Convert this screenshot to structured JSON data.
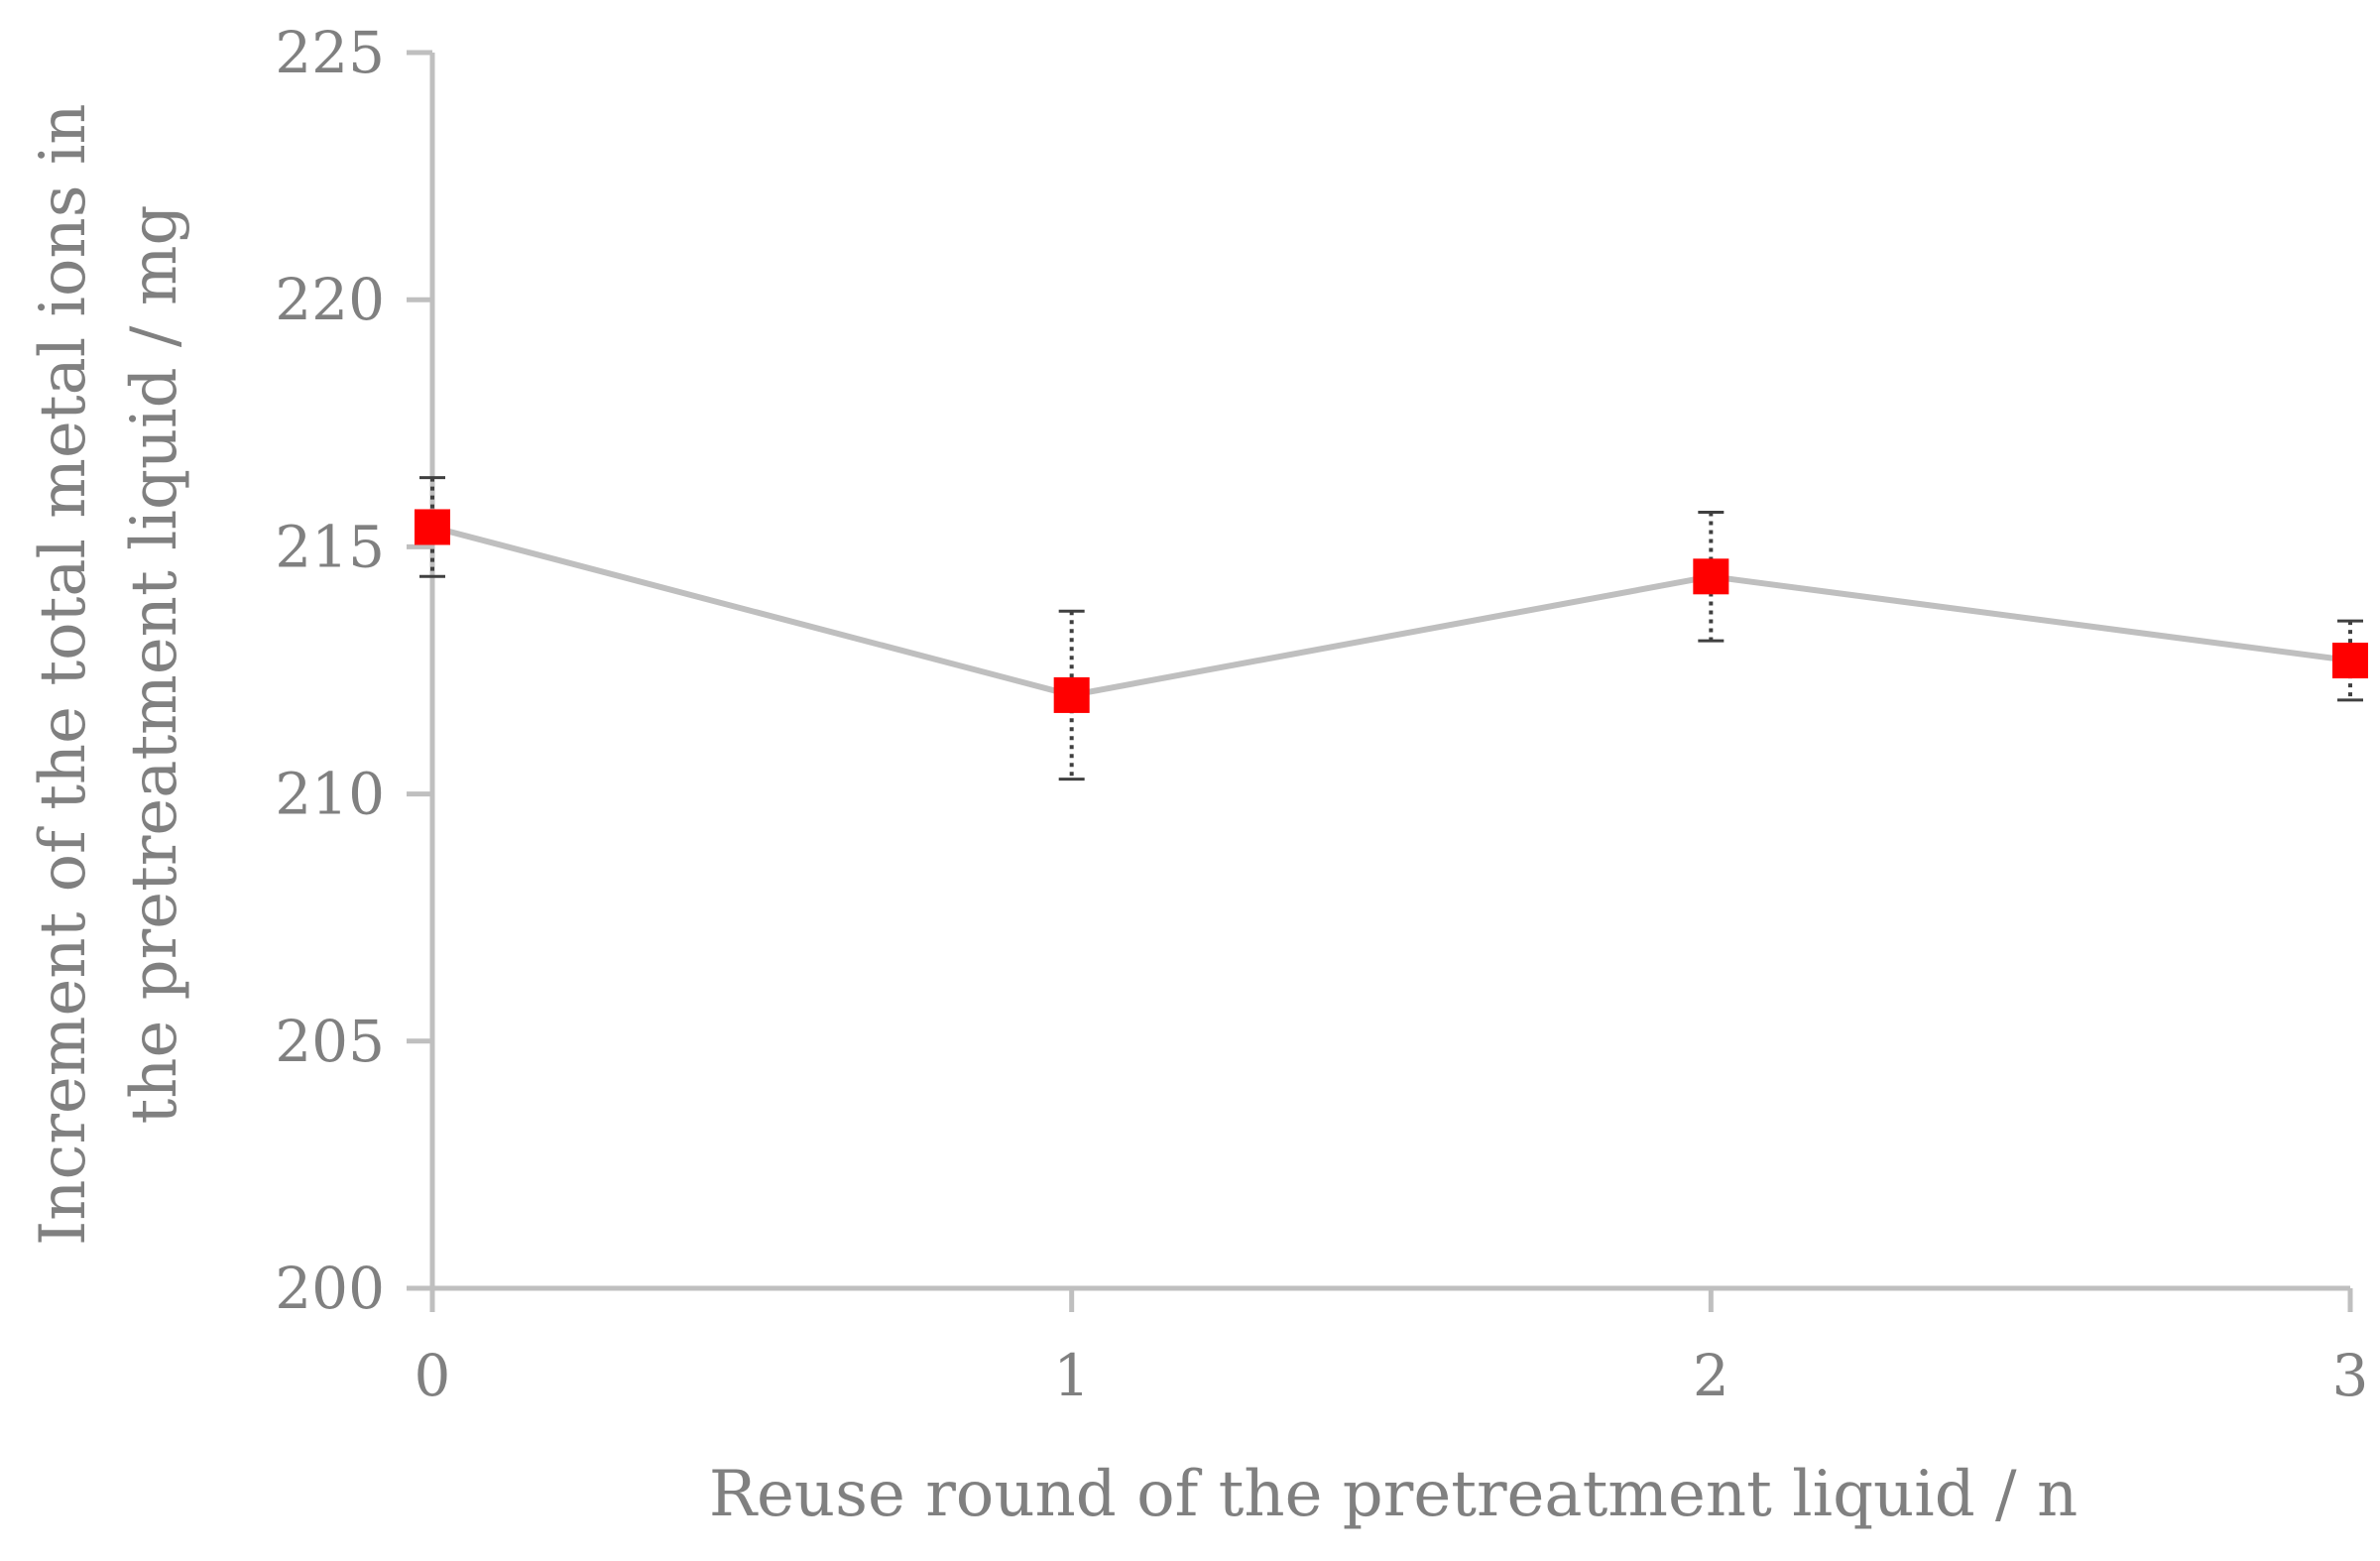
{
  "chart_data": {
    "type": "line",
    "xlabel": "Reuse round of the pretreatment  liquid / n",
    "ylabel_lines": [
      "Increment of the total metal ions in",
      "the pretreatment  liquid  / mg"
    ],
    "x": [
      0,
      1,
      2,
      3
    ],
    "x_ticks": [
      "0",
      "1",
      "2",
      "3"
    ],
    "ylim": [
      200,
      225
    ],
    "y_ticks": [
      "200",
      "205",
      "210",
      "215",
      "220",
      "225"
    ],
    "grid": false,
    "series": [
      {
        "values": [
          215.4,
          212.0,
          214.4,
          212.7
        ],
        "error": [
          1.0,
          1.7,
          1.3,
          0.8
        ],
        "line_color": "#bfbfbf",
        "marker_color": "#ff0000",
        "marker": "square"
      }
    ]
  },
  "colors": {
    "axis": "#bfbfbf",
    "text": "#808080",
    "error_bar": "#404040"
  }
}
